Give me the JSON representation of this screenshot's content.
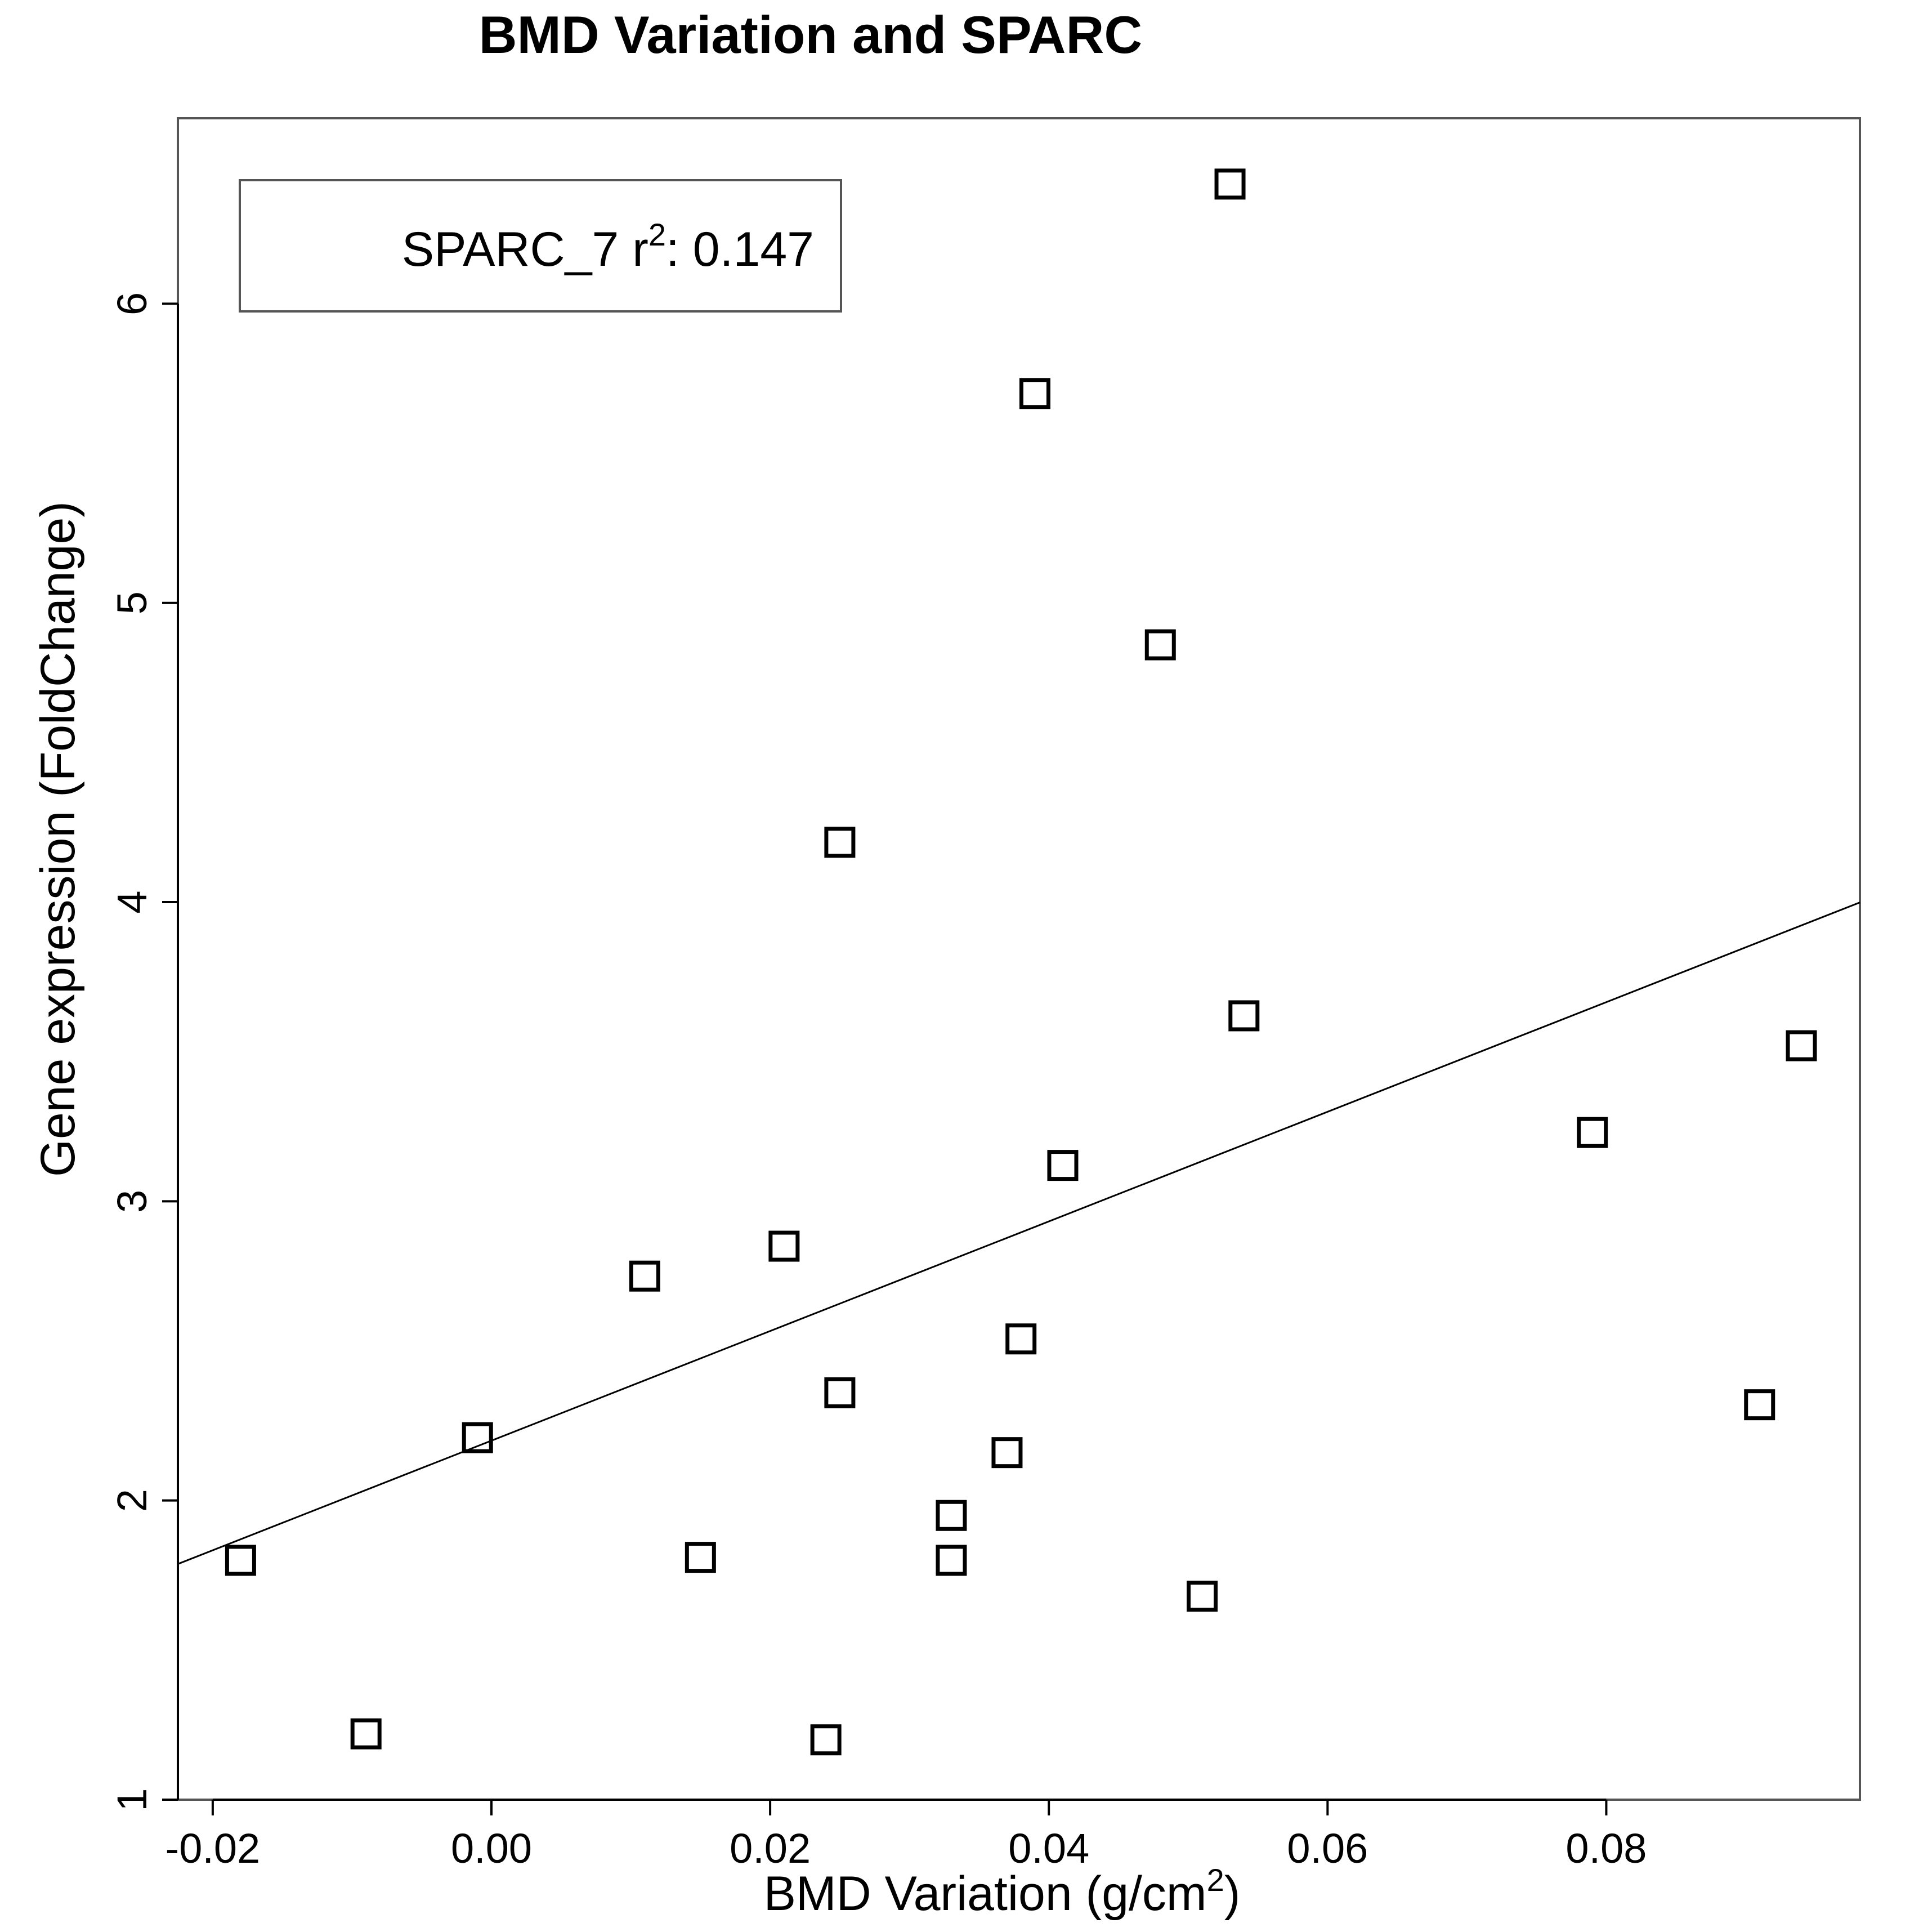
{
  "chart_data": {
    "type": "scatter",
    "title": "BMD Variation and SPARC",
    "xlabel": "BMD Variation (g/cm",
    "xlabel_sup": "2",
    "xlabel_close": ")",
    "ylabel": "Gene expression (FoldChange)",
    "xlim": [
      -0.0225,
      0.0982
    ],
    "ylim": [
      1.0,
      6.62
    ],
    "x_ticks": [
      -0.02,
      0.0,
      0.02,
      0.04,
      0.06,
      0.08
    ],
    "x_tick_labels": [
      "-0.02",
      "0.00",
      "0.02",
      "0.04",
      "0.06",
      "0.08"
    ],
    "y_ticks": [
      1,
      2,
      3,
      4,
      5,
      6
    ],
    "y_tick_labels": [
      "1",
      "2",
      "3",
      "4",
      "5",
      "6"
    ],
    "grid": false,
    "legend": {
      "position": "top-left",
      "label": "SPARC_7 r",
      "sup": "2",
      "value_text": ": 0.147"
    },
    "marker": "open-square",
    "points": [
      {
        "x": -0.018,
        "y": 1.8
      },
      {
        "x": -0.009,
        "y": 1.22
      },
      {
        "x": -0.001,
        "y": 2.21
      },
      {
        "x": 0.011,
        "y": 2.75
      },
      {
        "x": 0.015,
        "y": 1.81
      },
      {
        "x": 0.021,
        "y": 2.85
      },
      {
        "x": 0.024,
        "y": 1.2
      },
      {
        "x": 0.025,
        "y": 4.2
      },
      {
        "x": 0.025,
        "y": 2.36
      },
      {
        "x": 0.033,
        "y": 1.95
      },
      {
        "x": 0.033,
        "y": 1.8
      },
      {
        "x": 0.037,
        "y": 2.16
      },
      {
        "x": 0.038,
        "y": 2.54
      },
      {
        "x": 0.039,
        "y": 5.7
      },
      {
        "x": 0.041,
        "y": 3.12
      },
      {
        "x": 0.048,
        "y": 4.86
      },
      {
        "x": 0.051,
        "y": 1.68
      },
      {
        "x": 0.053,
        "y": 6.4
      },
      {
        "x": 0.054,
        "y": 3.62
      },
      {
        "x": 0.079,
        "y": 3.23
      },
      {
        "x": 0.091,
        "y": 2.32
      },
      {
        "x": 0.094,
        "y": 3.52
      }
    ],
    "fit_line": {
      "intercept": 2.2,
      "slope": 18.32
    }
  }
}
